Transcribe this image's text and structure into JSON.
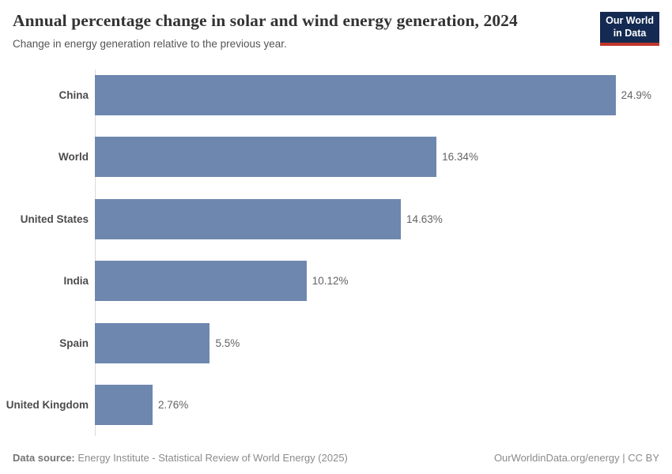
{
  "header": {
    "title": "Annual percentage change in solar and wind energy generation, 2024",
    "subtitle": "Change in energy generation relative to the previous year.",
    "logo": {
      "line1": "Our World",
      "line2": "in Data"
    }
  },
  "chart_data": {
    "type": "bar",
    "orientation": "horizontal",
    "title": "Annual percentage change in solar and wind energy generation, 2024",
    "subtitle": "Change in energy generation relative to the previous year.",
    "categories": [
      "China",
      "World",
      "United States",
      "India",
      "Spain",
      "United Kingdom"
    ],
    "values": [
      24.9,
      16.34,
      14.63,
      10.12,
      5.5,
      2.76
    ],
    "value_labels": [
      "24.9%",
      "16.34%",
      "14.63%",
      "10.12%",
      "5.5%",
      "2.76%"
    ],
    "unit": "%",
    "xlabel": "",
    "ylabel": "",
    "xlim": [
      0,
      27.6
    ],
    "grid": false,
    "legend": false,
    "bar_color": "#6e87ae",
    "axis_line_color": "#dadada"
  },
  "footer": {
    "datasource_label": "Data source:",
    "datasource_text": " Energy Institute - Statistical Review of World Energy (2025)",
    "credit": "OurWorldinData.org/energy | CC BY"
  },
  "colors": {
    "bar": "#6e87ae",
    "logo_bg": "#142a52",
    "logo_accent": "#c0362c",
    "title_text": "#333333",
    "muted_text": "#8b8b8b"
  }
}
